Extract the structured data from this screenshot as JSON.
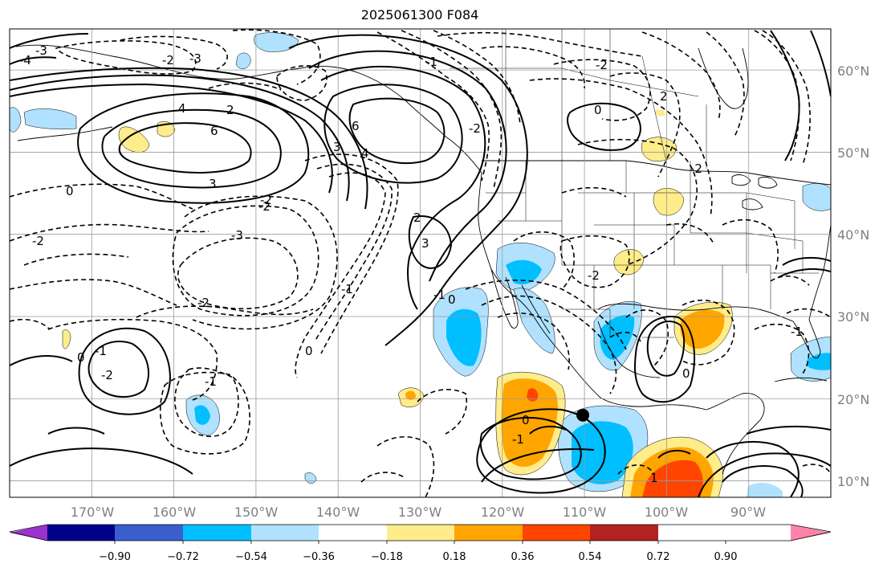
{
  "title": "2025061300 F084",
  "map": {
    "projection": "equirectangular",
    "lon_range": [
      -180,
      -80
    ],
    "lat_range": [
      8,
      65
    ],
    "lon_labels": [
      "170°W",
      "160°W",
      "150°W",
      "140°W",
      "130°W",
      "120°W",
      "110°W",
      "100°W",
      "90°W"
    ],
    "lat_labels": [
      "60°N",
      "50°N",
      "40°N",
      "30°N",
      "20°N",
      "10°N"
    ],
    "contour_style": {
      "positive": "solid",
      "negative": "dashed",
      "color": "#000000"
    },
    "contour_labels": [
      "-4",
      "-3",
      "-2",
      "-2",
      "-2",
      "-3",
      "-2",
      "2",
      "3",
      "4",
      "6",
      "6",
      "4",
      "3",
      "2",
      "3",
      "0",
      "-2",
      "-3",
      "-2",
      "-1",
      "-2",
      "0",
      "-2",
      "-1",
      "-2",
      "2",
      "-1",
      "0",
      "-1",
      "0",
      "0",
      "-1",
      "-2",
      "-1",
      "0",
      "-1",
      "0",
      "1"
    ],
    "marker": {
      "name": "storm-position-marker",
      "lon": -110.2,
      "lat": 18.0,
      "color": "#000000"
    }
  },
  "colorbar": {
    "tick_labels": [
      "−0.90",
      "−0.72",
      "−0.54",
      "−0.36",
      "−0.18",
      "0.18",
      "0.36",
      "0.54",
      "0.72",
      "0.90"
    ],
    "colors": [
      "#9a32cd",
      "#00008b",
      "#3a5fcd",
      "#00bfff",
      "#b0e2ff",
      "#ffffff",
      "#ffec8b",
      "#ffa500",
      "#ff4500",
      "#b22222",
      "#ff83a8"
    ],
    "extend": "both"
  }
}
